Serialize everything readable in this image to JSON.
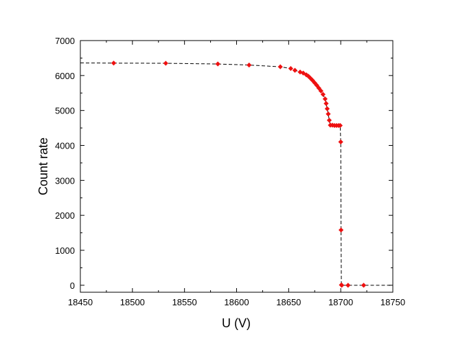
{
  "chart_data": {
    "type": "scatter",
    "title": "",
    "xlabel": "U (V)",
    "ylabel": "Count rate",
    "xlim": [
      18450,
      18750
    ],
    "ylim": [
      -200,
      7000
    ],
    "xticks": [
      18450,
      18500,
      18550,
      18600,
      18650,
      18700,
      18750
    ],
    "yticks": [
      0,
      1000,
      2000,
      3000,
      4000,
      5000,
      6000,
      7000
    ],
    "x_tick_labels": [
      "18450",
      "18500",
      "18550",
      "18600",
      "18650",
      "18700",
      "18750"
    ],
    "y_tick_labels": [
      "0",
      "1000",
      "2000",
      "3000",
      "4000",
      "5000",
      "6000",
      "7000"
    ],
    "grid": false,
    "legend": "none",
    "colors": {
      "points": "#ee1111",
      "line": "#000000"
    },
    "series": [
      {
        "marker": "diamond",
        "line_style": "dashed",
        "x": [
          18450,
          18482,
          18532,
          18582,
          18612,
          18642,
          18652,
          18656,
          18661,
          18664,
          18667,
          18669,
          18671,
          18673,
          18675,
          18677,
          18679,
          18681,
          18683,
          18685,
          18686,
          18687,
          18688,
          18689,
          18690,
          18692,
          18694,
          18696,
          18698,
          18699.5,
          18700,
          18700.3,
          18700.6,
          18701,
          18707,
          18722,
          18750
        ],
        "y": [
          6360,
          6355,
          6350,
          6330,
          6300,
          6250,
          6200,
          6150,
          6100,
          6070,
          6020,
          5980,
          5920,
          5860,
          5790,
          5720,
          5640,
          5560,
          5460,
          5330,
          5200,
          5050,
          4900,
          4720,
          4580,
          4580,
          4570,
          4570,
          4570,
          4570,
          4100,
          1580,
          10,
          0,
          0,
          0,
          0
        ]
      }
    ]
  }
}
